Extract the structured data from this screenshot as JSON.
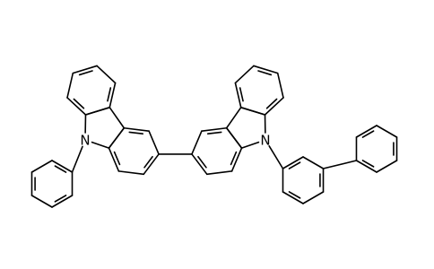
{
  "atoms": [
    {
      "label": "N"
    },
    {
      "label": "N"
    }
  ]
}
